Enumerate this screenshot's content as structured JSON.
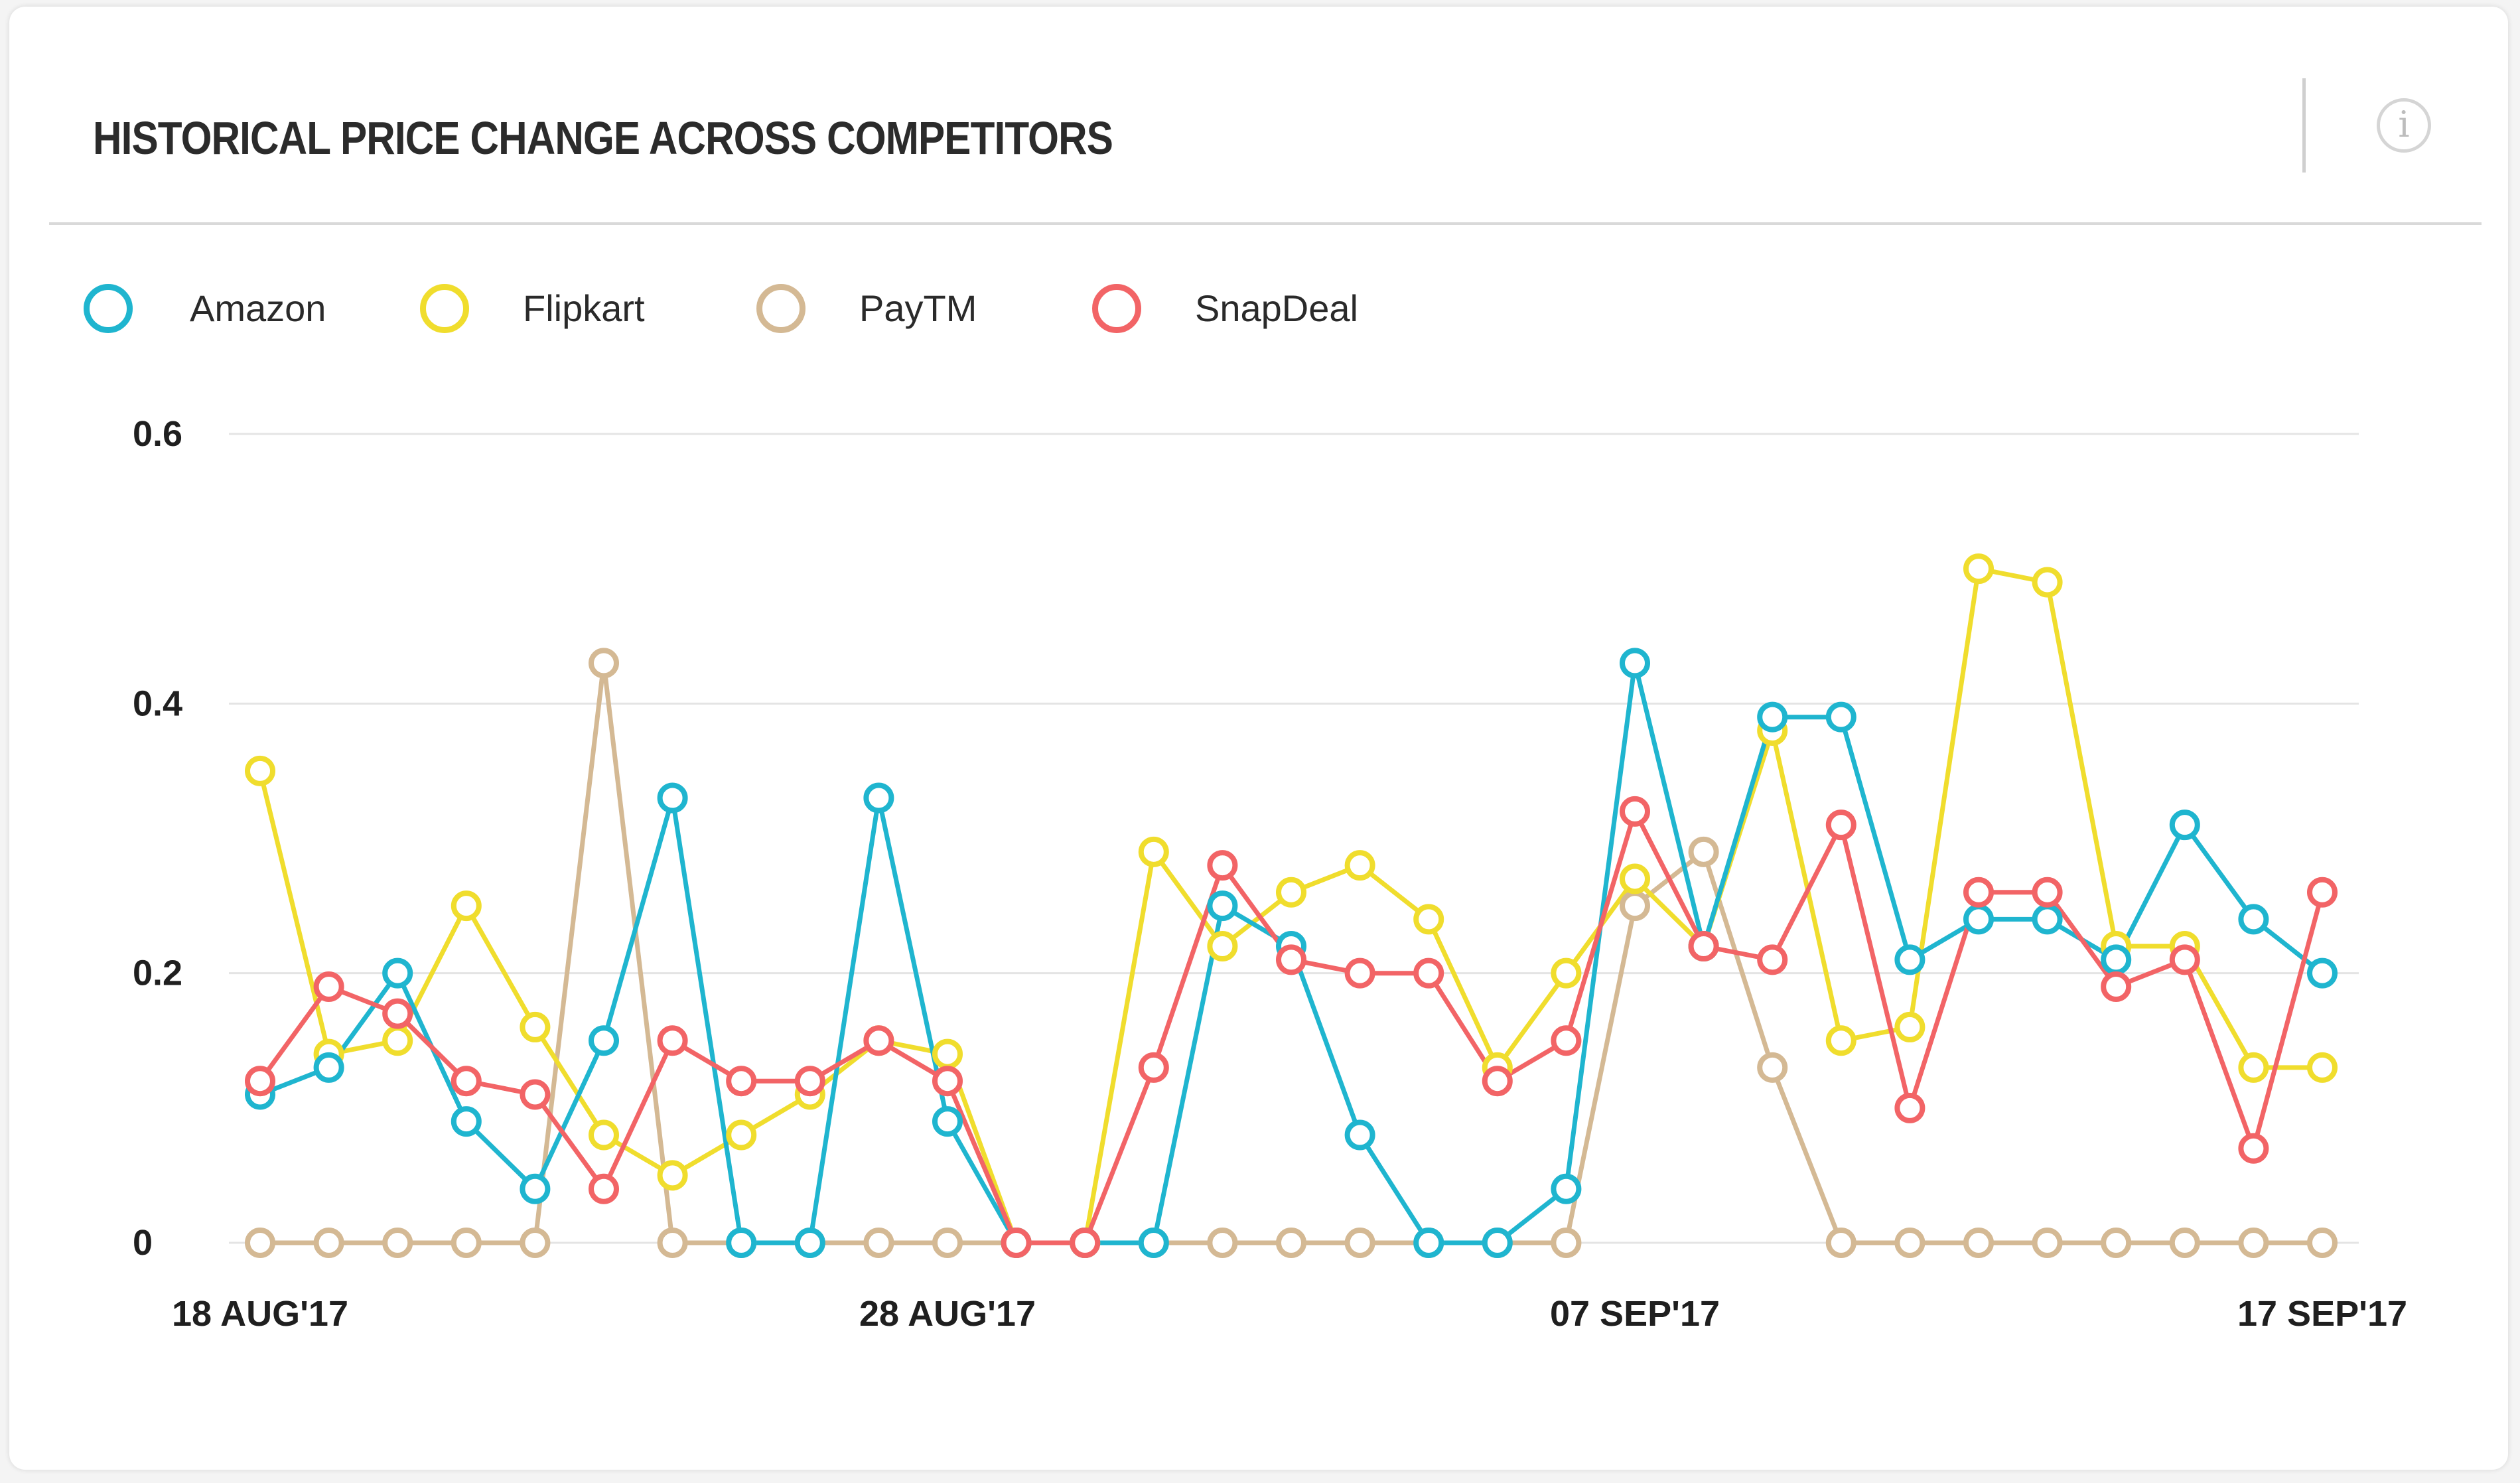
{
  "header": {
    "title": "HISTORICAL PRICE CHANGE ACROSS COMPETITORS",
    "info_icon_glyph": "i"
  },
  "colors": {
    "Amazon": "#1fb5cf",
    "Flipkart": "#f0dd2d",
    "PayTM": "#d4b994",
    "SnapDeal": "#f26466"
  },
  "chart_data": {
    "type": "line",
    "title": "HISTORICAL PRICE CHANGE ACROSS COMPETITORS",
    "xlabel": "",
    "ylabel": "",
    "ylim": [
      0,
      0.6
    ],
    "yticks": [
      0,
      0.2,
      0.4,
      0.6
    ],
    "ytick_labels": [
      "0",
      "0.2",
      "0.4",
      "0.6"
    ],
    "x": [
      "18 Aug'17",
      "19 Aug'17",
      "20 Aug'17",
      "21 Aug'17",
      "22 Aug'17",
      "23 Aug'17",
      "24 Aug'17",
      "25 Aug'17",
      "26 Aug'17",
      "27 Aug'17",
      "28 Aug'17",
      "29 Aug'17",
      "30 Aug'17",
      "31 Aug'17",
      "01 Sep'17",
      "02 Sep'17",
      "03 Sep'17",
      "04 Sep'17",
      "05 Sep'17",
      "06 Sep'17",
      "07 Sep'17",
      "08 Sep'17",
      "09 Sep'17",
      "10 Sep'17",
      "11 Sep'17",
      "12 Sep'17",
      "13 Sep'17",
      "14 Sep'17",
      "15 Sep'17",
      "16 Sep'17",
      "17 Sep'17"
    ],
    "xtick_labels": [
      {
        "index": 0,
        "label": "18 AUG'17"
      },
      {
        "index": 10,
        "label": "28 AUG'17"
      },
      {
        "index": 20,
        "label": "07 SEP'17"
      },
      {
        "index": 30,
        "label": "17 SEP'17"
      }
    ],
    "grid": true,
    "legend": "top-left",
    "series": [
      {
        "name": "Amazon",
        "values": [
          0.11,
          0.13,
          0.2,
          0.09,
          0.04,
          0.15,
          0.33,
          0,
          0,
          0.33,
          0.09,
          0,
          0,
          0,
          0.25,
          0.22,
          0.08,
          0,
          0,
          0.04,
          0.43,
          0.22,
          0.39,
          0.39,
          0.21,
          0.24,
          0.24,
          0.21,
          0.31,
          0.24,
          0.2
        ]
      },
      {
        "name": "Flipkart",
        "values": [
          0.35,
          0.14,
          0.15,
          0.25,
          0.16,
          0.08,
          0.05,
          0.08,
          0.11,
          0.15,
          0.14,
          0,
          0,
          0.29,
          0.22,
          0.26,
          0.28,
          0.24,
          0.13,
          0.2,
          0.27,
          0.22,
          0.38,
          0.15,
          0.16,
          0.5,
          0.49,
          0.22,
          0.22,
          0.13,
          0.13
        ]
      },
      {
        "name": "PayTM",
        "values": [
          0,
          0,
          0,
          0,
          0,
          0.43,
          0,
          0,
          0,
          0,
          0,
          0,
          0,
          0,
          0,
          0,
          0,
          0,
          0,
          0,
          0.25,
          0.29,
          0.13,
          0,
          0,
          0,
          0,
          0,
          0,
          0,
          0
        ]
      },
      {
        "name": "SnapDeal",
        "values": [
          0.12,
          0.19,
          0.17,
          0.12,
          0.11,
          0.04,
          0.15,
          0.12,
          0.12,
          0.15,
          0.12,
          0,
          0,
          0.13,
          0.28,
          0.21,
          0.2,
          0.2,
          0.12,
          0.15,
          0.32,
          0.22,
          0.21,
          0.31,
          0.1,
          0.26,
          0.26,
          0.19,
          0.21,
          0.07,
          0.26
        ]
      }
    ]
  }
}
